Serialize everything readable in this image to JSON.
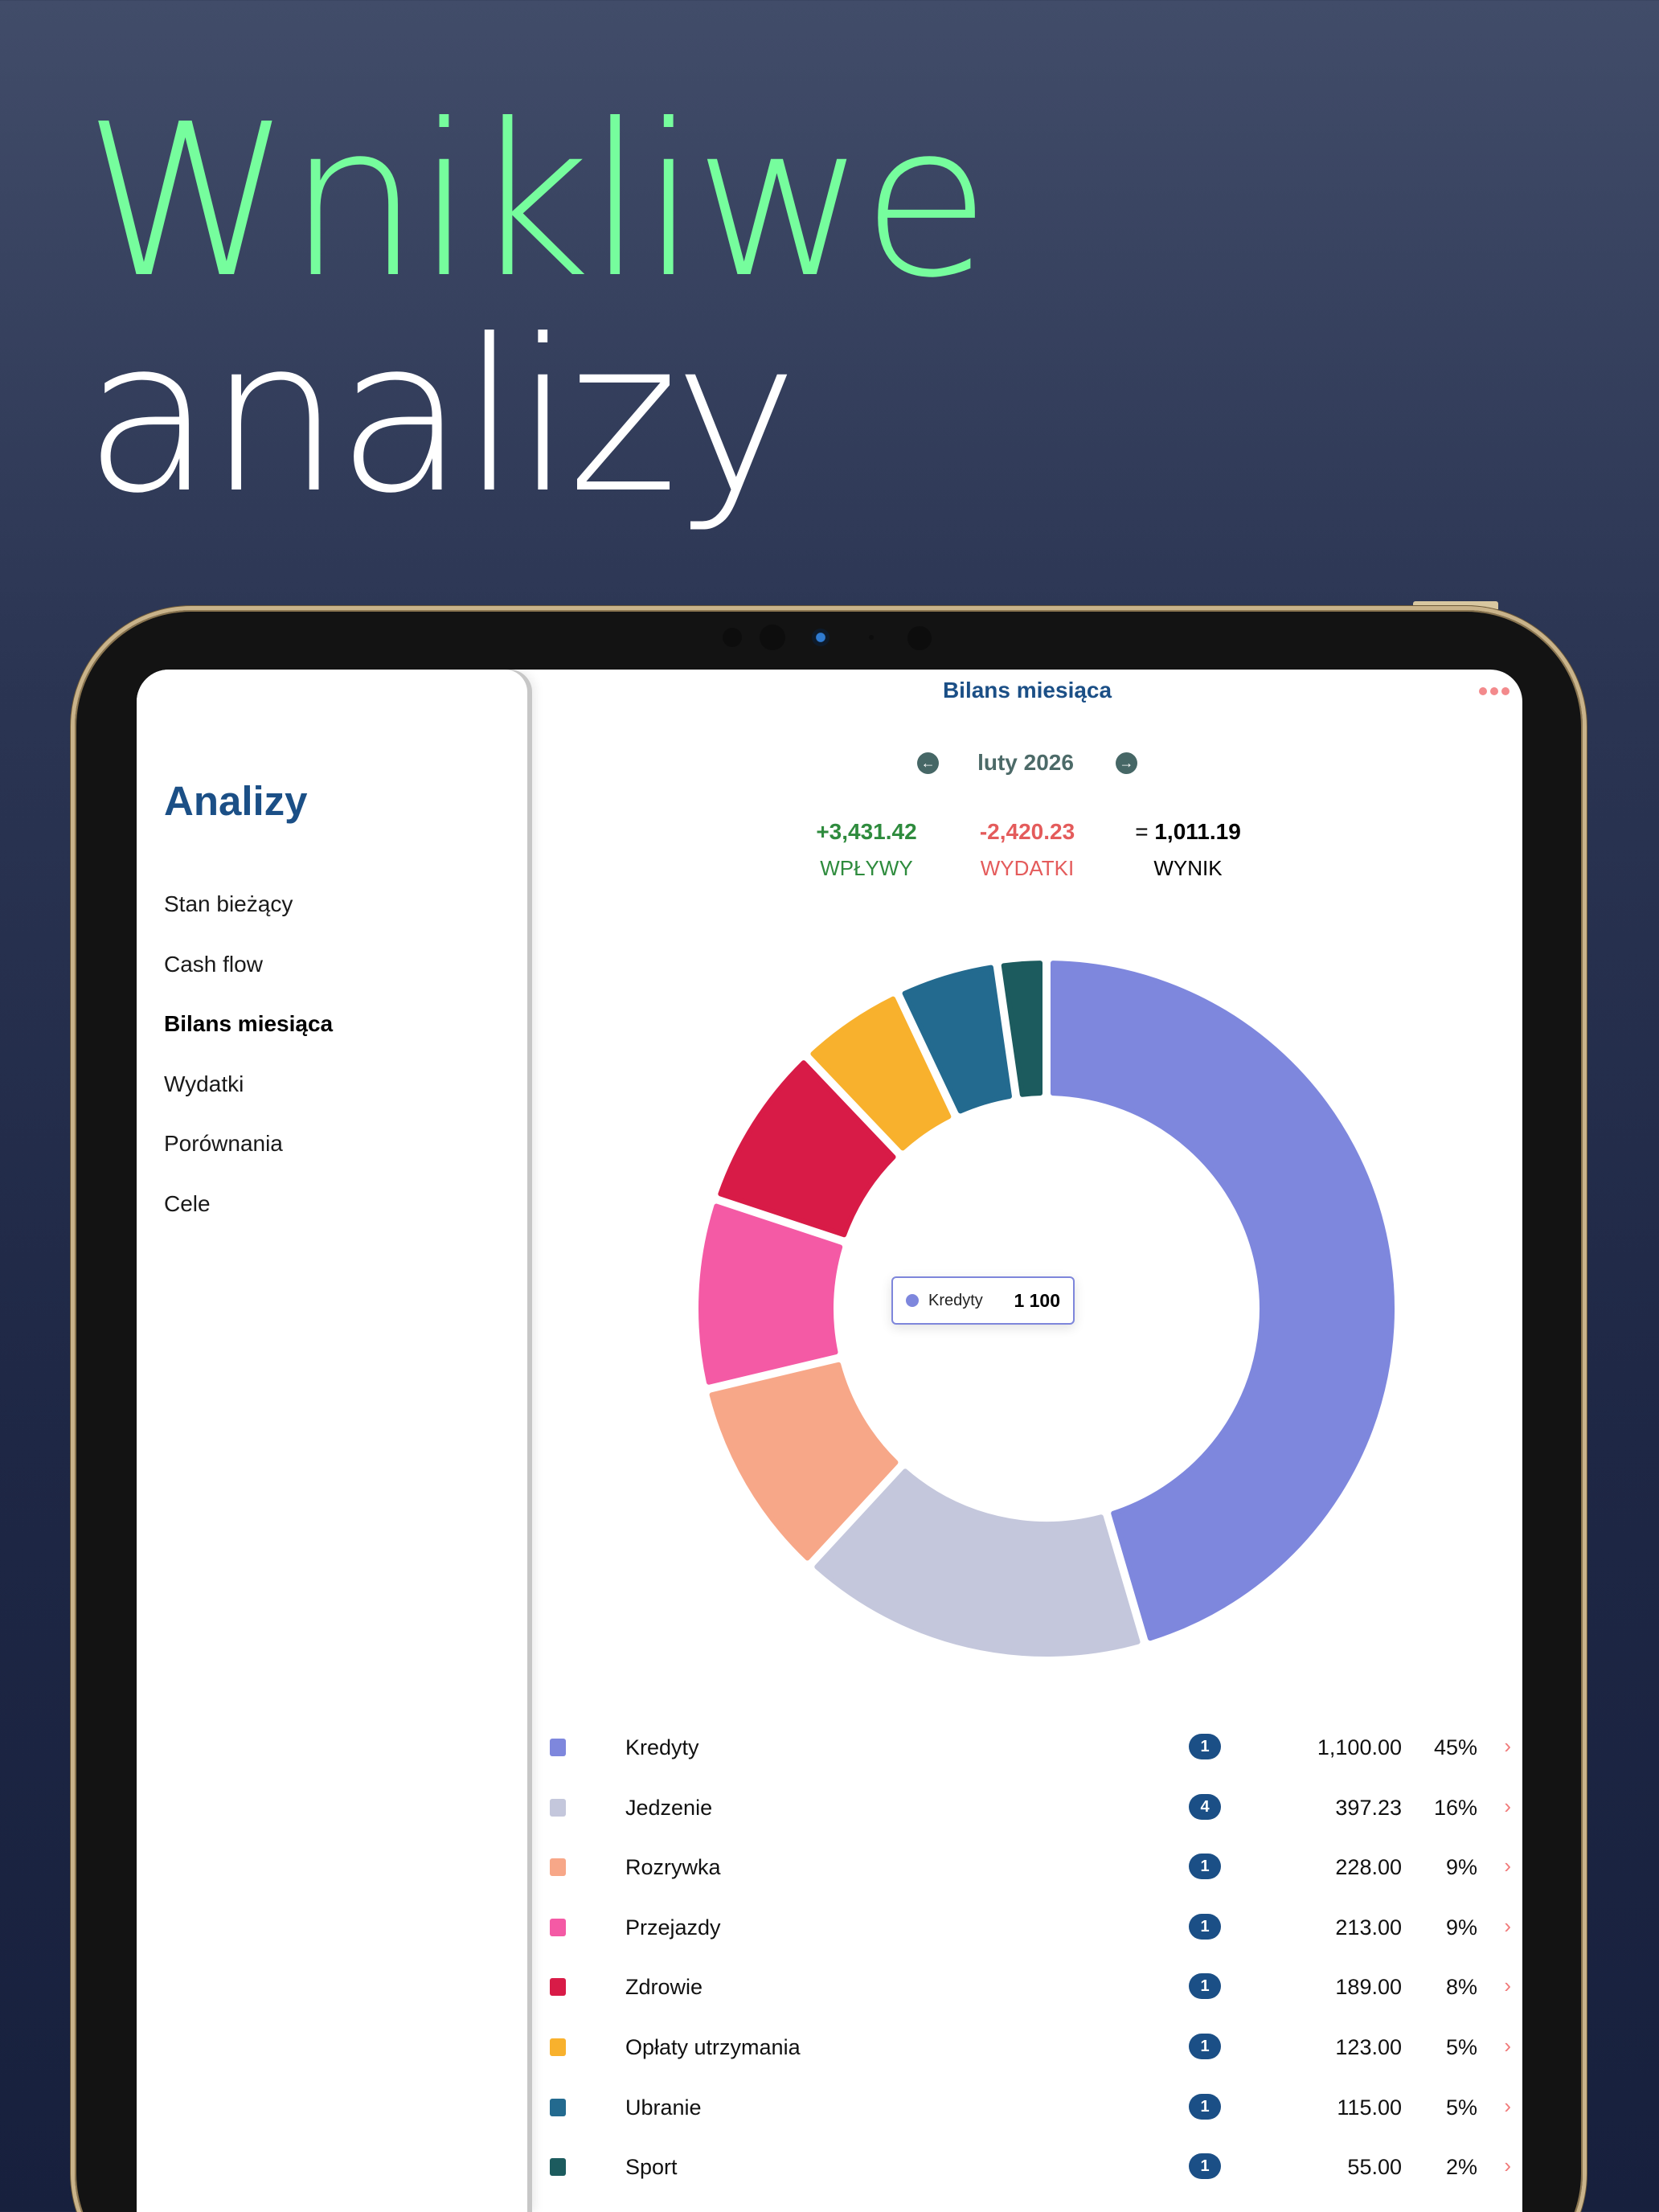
{
  "hero": {
    "line1": "Wnikliwe",
    "line2": "analizy",
    "line1_color": "#76fd9d",
    "line2_color": "#ffffff"
  },
  "sidebar": {
    "title": "Analizy",
    "items": [
      {
        "label": "Stan bieżący",
        "active": false
      },
      {
        "label": "Cash flow",
        "active": false
      },
      {
        "label": "Bilans miesiąca",
        "active": true
      },
      {
        "label": "Wydatki",
        "active": false
      },
      {
        "label": "Porównania",
        "active": false
      },
      {
        "label": "Cele",
        "active": false
      }
    ]
  },
  "main": {
    "title": "Bilans miesiąca",
    "more_icon": "ellipsis-icon",
    "month": {
      "label": "luty 2026",
      "prev_icon": "arrow-left-circle-icon",
      "next_icon": "arrow-right-circle-icon",
      "prev_glyph": "←",
      "next_glyph": "→"
    },
    "summary": {
      "income": {
        "value": "+3,431.42",
        "label": "WPŁYWY",
        "color": "#2e8b3d"
      },
      "expenses": {
        "value": "-2,420.23",
        "label": "WYDATKI",
        "color": "#e45b5b"
      },
      "result": {
        "prefix": "= ",
        "value": "1,011.19",
        "label": "WYNIK",
        "color": "#000000"
      }
    },
    "tooltip": {
      "label": "Kredyty",
      "value": "1 100",
      "color": "#7e87dd"
    },
    "chevron_glyph": "›"
  },
  "chart_data": {
    "type": "pie",
    "subtype": "donut",
    "title": "Bilans miesiąca",
    "total": 2420.23,
    "categories": [
      "Kredyty",
      "Jedzenie",
      "Rozrywka",
      "Przejazdy",
      "Zdrowie",
      "Opłaty utrzymania",
      "Ubranie",
      "Sport"
    ],
    "values": [
      1100.0,
      397.23,
      228.0,
      213.0,
      189.0,
      123.0,
      115.0,
      55.0
    ],
    "colors": [
      "#7e87dd",
      "#c4c7dc",
      "#f7a788",
      "#f45aa5",
      "#d81b47",
      "#f8b12d",
      "#236a8f",
      "#1c5b5e"
    ],
    "start_angle_deg": 0,
    "direction": "clockwise",
    "legend_position": "bottom",
    "highlighted": "Kredyty"
  },
  "legend": [
    {
      "name": "Kredyty",
      "count": "1",
      "amount": "1,100.00",
      "pct": "45%",
      "color": "#7e87dd"
    },
    {
      "name": "Jedzenie",
      "count": "4",
      "amount": "397.23",
      "pct": "16%",
      "color": "#c4c7dc"
    },
    {
      "name": "Rozrywka",
      "count": "1",
      "amount": "228.00",
      "pct": "9%",
      "color": "#f7a788"
    },
    {
      "name": "Przejazdy",
      "count": "1",
      "amount": "213.00",
      "pct": "9%",
      "color": "#f45aa5"
    },
    {
      "name": "Zdrowie",
      "count": "1",
      "amount": "189.00",
      "pct": "8%",
      "color": "#d81b47"
    },
    {
      "name": "Opłaty utrzymania",
      "count": "1",
      "amount": "123.00",
      "pct": "5%",
      "color": "#f8b12d"
    },
    {
      "name": "Ubranie",
      "count": "1",
      "amount": "115.00",
      "pct": "5%",
      "color": "#236a8f"
    },
    {
      "name": "Sport",
      "count": "1",
      "amount": "55.00",
      "pct": "2%",
      "color": "#1c5b5e"
    }
  ]
}
